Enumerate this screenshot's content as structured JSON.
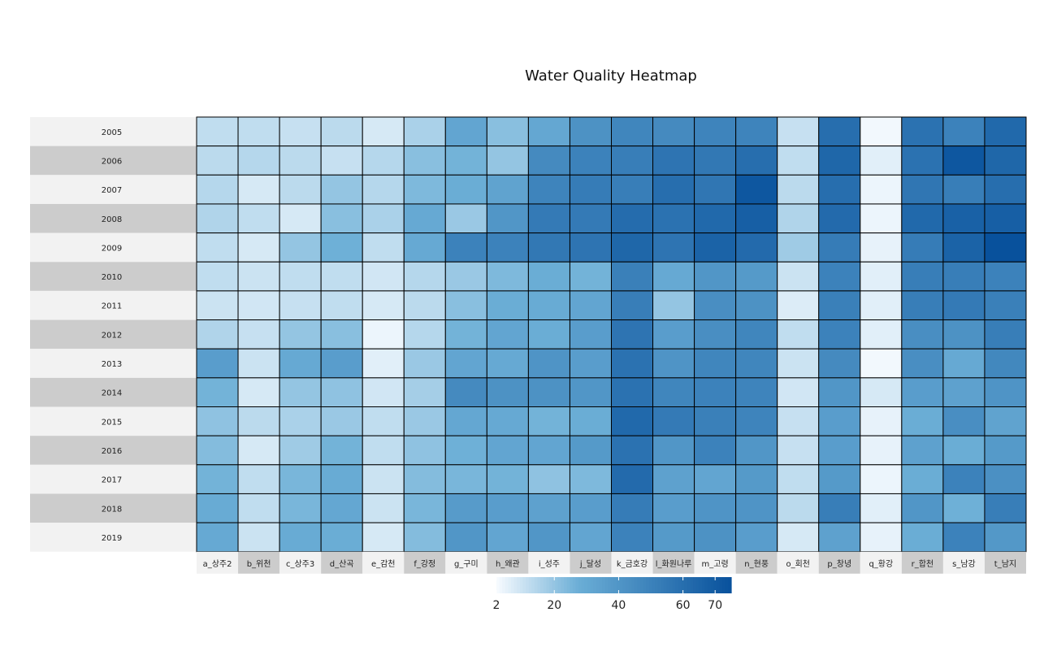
{
  "chart_data": {
    "type": "heatmap",
    "title": "Water Quality Heatmap",
    "xlabel": "",
    "ylabel": "",
    "columns": [
      "a_상주2",
      "b_위천",
      "c_상주3",
      "d_산곡",
      "e_감천",
      "f_강정",
      "g_구미",
      "h_왜관",
      "i_성주",
      "j_달성",
      "k_금호강",
      "l_화원나루",
      "m_고령",
      "n_현풍",
      "o_회천",
      "p_창녕",
      "q_황강",
      "r_합천",
      "s_남강",
      "t_남지"
    ],
    "rows": [
      "2005",
      "2006",
      "2007",
      "2008",
      "2009",
      "2010",
      "2011",
      "2012",
      "2013",
      "2014",
      "2015",
      "2016",
      "2017",
      "2018",
      "2019"
    ],
    "values": [
      [
        12,
        12,
        11,
        13,
        8,
        16,
        32,
        22,
        31,
        42,
        48,
        46,
        49,
        49,
        11,
        60,
        3,
        58,
        50,
        63
      ],
      [
        13,
        14,
        13,
        11,
        14,
        22,
        26,
        20,
        46,
        50,
        52,
        57,
        55,
        60,
        12,
        64,
        6,
        58,
        72,
        64
      ],
      [
        14,
        8,
        13,
        20,
        14,
        24,
        28,
        33,
        49,
        53,
        52,
        60,
        56,
        72,
        13,
        60,
        4,
        56,
        52,
        60
      ],
      [
        15,
        12,
        8,
        22,
        16,
        30,
        19,
        40,
        54,
        54,
        61,
        58,
        63,
        68,
        15,
        62,
        4,
        63,
        67,
        68
      ],
      [
        12,
        8,
        20,
        27,
        12,
        30,
        50,
        50,
        55,
        57,
        64,
        57,
        66,
        62,
        18,
        53,
        5,
        53,
        66,
        75
      ],
      [
        12,
        10,
        12,
        12,
        9,
        14,
        19,
        24,
        28,
        26,
        51,
        30,
        40,
        38,
        10,
        50,
        6,
        52,
        52,
        50
      ],
      [
        10,
        9,
        11,
        12,
        8,
        13,
        22,
        28,
        29,
        32,
        52,
        20,
        44,
        42,
        7,
        51,
        6,
        52,
        54,
        51
      ],
      [
        15,
        11,
        20,
        22,
        4,
        14,
        26,
        32,
        28,
        36,
        57,
        36,
        44,
        48,
        12,
        50,
        6,
        44,
        42,
        52
      ],
      [
        36,
        10,
        30,
        36,
        6,
        19,
        32,
        30,
        41,
        36,
        58,
        41,
        48,
        48,
        10,
        46,
        3,
        44,
        30,
        47
      ],
      [
        26,
        8,
        20,
        21,
        9,
        17,
        46,
        42,
        42,
        40,
        58,
        48,
        50,
        49,
        9,
        40,
        8,
        36,
        34,
        41
      ],
      [
        21,
        13,
        16,
        19,
        12,
        19,
        31,
        30,
        26,
        28,
        63,
        54,
        51,
        49,
        11,
        36,
        5,
        28,
        44,
        33
      ],
      [
        23,
        8,
        18,
        26,
        12,
        21,
        27,
        32,
        32,
        38,
        58,
        40,
        50,
        40,
        11,
        36,
        5,
        34,
        28,
        38
      ],
      [
        26,
        12,
        25,
        29,
        10,
        23,
        25,
        26,
        21,
        24,
        62,
        34,
        32,
        38,
        12,
        38,
        4,
        28,
        50,
        43
      ],
      [
        29,
        12,
        25,
        31,
        10,
        25,
        37,
        36,
        34,
        36,
        53,
        36,
        41,
        41,
        13,
        52,
        6,
        40,
        27,
        52
      ],
      [
        30,
        10,
        29,
        28,
        8,
        23,
        40,
        32,
        40,
        32,
        50,
        38,
        42,
        36,
        8,
        34,
        5,
        28,
        50,
        39
      ]
    ],
    "colorbar": {
      "ticks": [
        2,
        20,
        40,
        60,
        70
      ],
      "min": 2,
      "max": 75,
      "color_low": "#f7fbff",
      "color_high": "#08519c"
    },
    "row_band_colors": [
      "#f2f2f2",
      "#cccccc"
    ],
    "grid": true,
    "legend_position": "bottom"
  }
}
